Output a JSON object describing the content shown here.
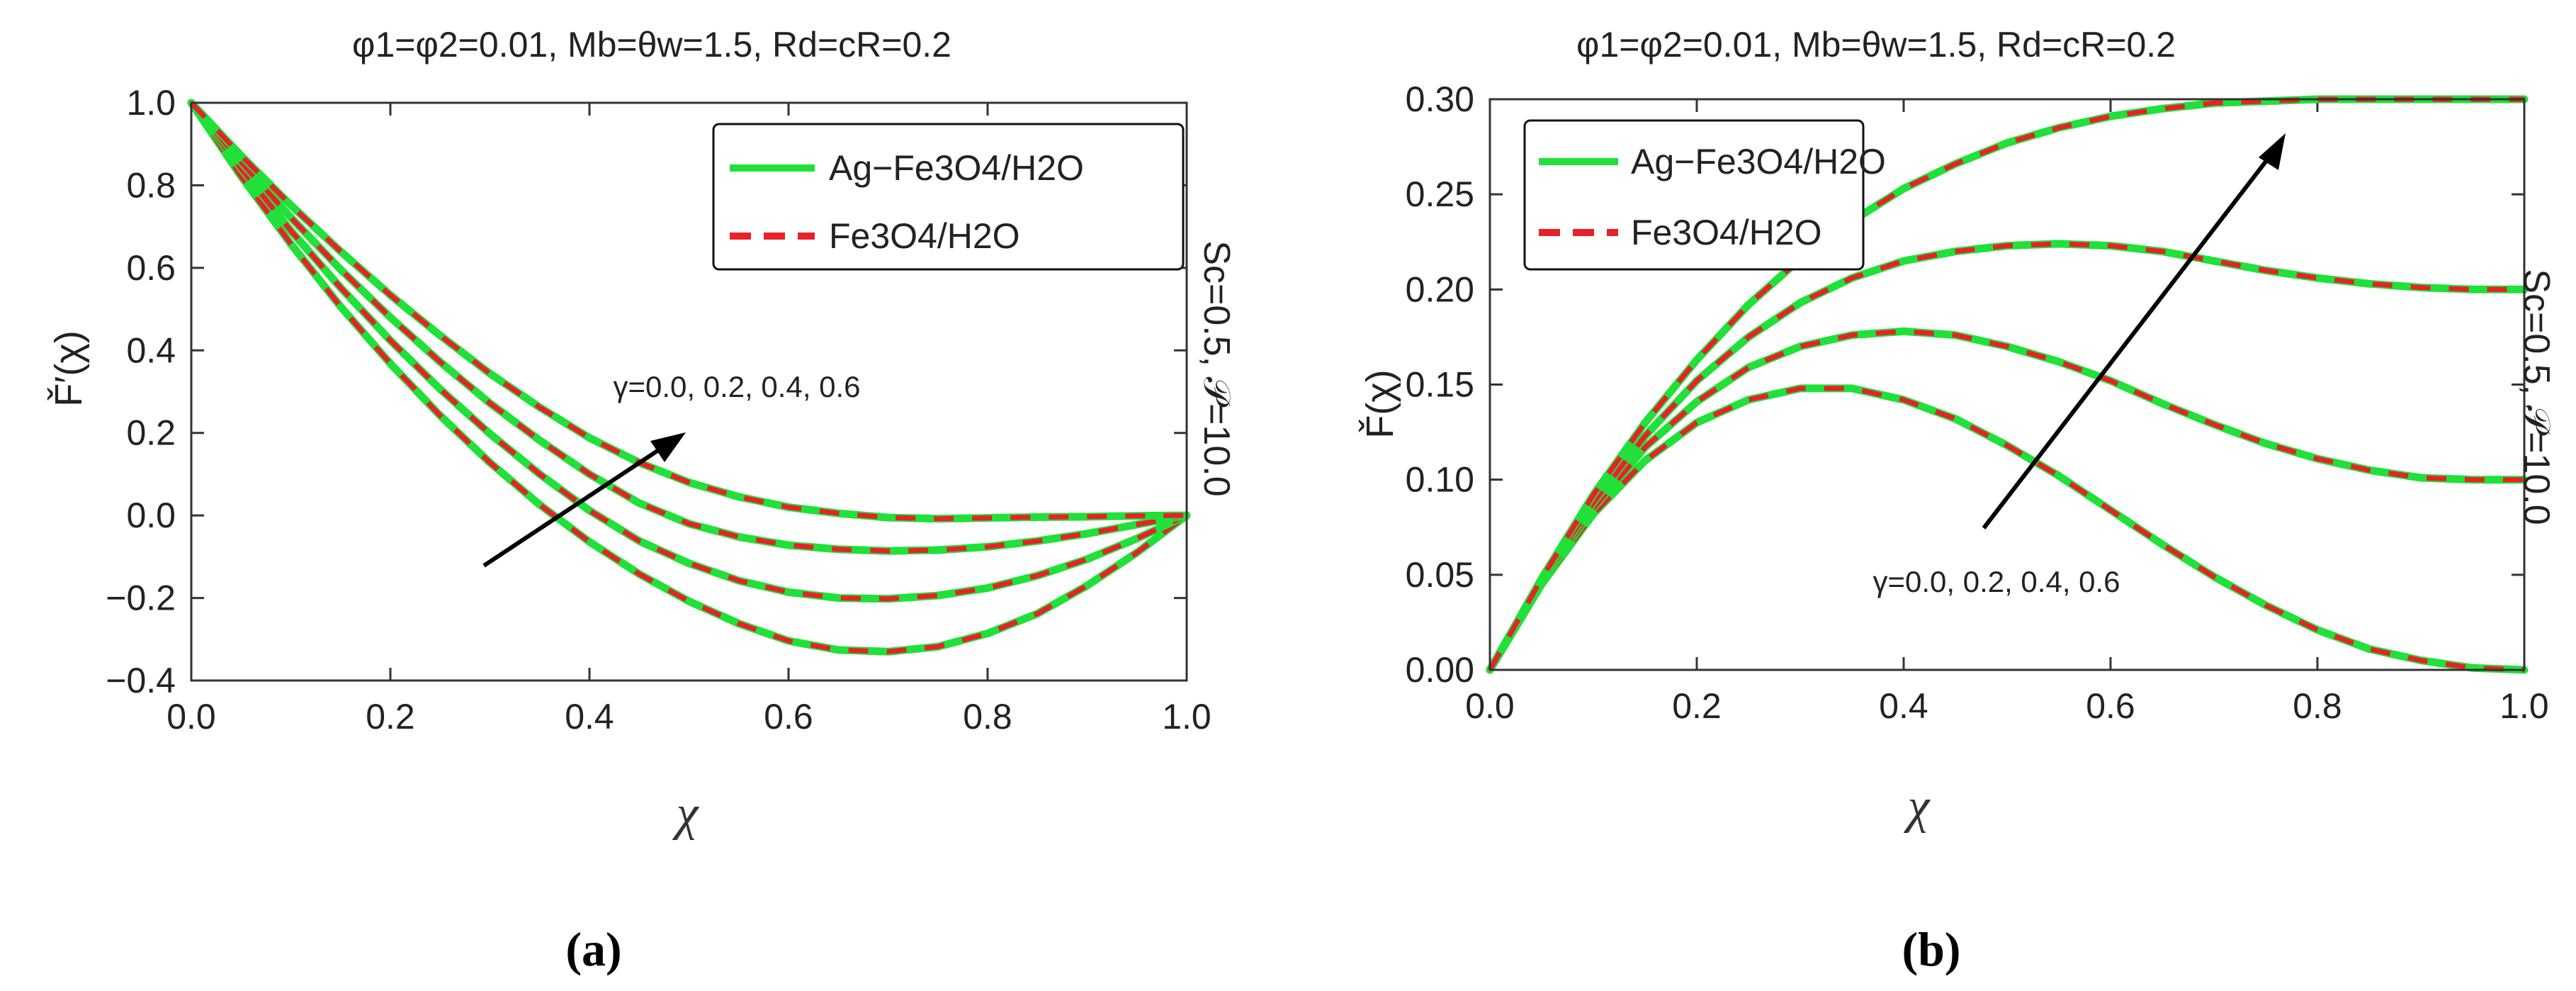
{
  "chart_data": [
    {
      "type": "line",
      "panel_label": "(a)",
      "title": "φ1=φ2=0.01, Mb=θw=1.5, Rd=cR=0.2",
      "xlabel": "χ",
      "ylabel": "F̌′(χ)",
      "side_label": "Sc=0.5, 𝒫=10.0",
      "xlim": [
        0.0,
        1.0
      ],
      "ylim": [
        -0.4,
        1.0
      ],
      "x_ticks": [
        "0.0",
        "0.2",
        "0.4",
        "0.6",
        "0.8",
        "1.0"
      ],
      "y_ticks": [
        "−0.4",
        "−0.2",
        "0.0",
        "0.2",
        "0.4",
        "0.6",
        "0.8",
        "1.0"
      ],
      "legend": [
        {
          "label": "Ag−Fe3O4/H2O",
          "color": "#22e03a",
          "style": "solid"
        },
        {
          "label": "Fe3O4/H2O",
          "color": "#e8202a",
          "style": "dashed"
        }
      ],
      "annotation": "γ=0.0, 0.2, 0.4, 0.6",
      "arrow_direction": "increasing γ (up-right)",
      "x": [
        0.0,
        0.05,
        0.1,
        0.15,
        0.2,
        0.25,
        0.3,
        0.35,
        0.4,
        0.45,
        0.5,
        0.55,
        0.6,
        0.65,
        0.7,
        0.75,
        0.8,
        0.85,
        0.9,
        0.95,
        1.0
      ],
      "series": [
        {
          "name": "γ=0.0",
          "values": [
            1.0,
            0.822,
            0.658,
            0.506,
            0.368,
            0.242,
            0.128,
            0.026,
            -0.064,
            -0.142,
            -0.208,
            -0.262,
            -0.304,
            -0.326,
            -0.33,
            -0.318,
            -0.286,
            -0.238,
            -0.17,
            -0.09,
            0.0
          ]
        },
        {
          "name": "γ=0.2",
          "values": [
            1.0,
            0.84,
            0.69,
            0.552,
            0.424,
            0.306,
            0.198,
            0.1,
            0.012,
            -0.062,
            -0.116,
            -0.158,
            -0.186,
            -0.2,
            -0.202,
            -0.194,
            -0.176,
            -0.146,
            -0.106,
            -0.056,
            0.0
          ]
        },
        {
          "name": "γ=0.4",
          "values": [
            1.0,
            0.856,
            0.722,
            0.596,
            0.48,
            0.372,
            0.272,
            0.182,
            0.1,
            0.03,
            -0.02,
            -0.052,
            -0.072,
            -0.082,
            -0.086,
            -0.084,
            -0.076,
            -0.062,
            -0.044,
            -0.022,
            0.0
          ]
        },
        {
          "name": "γ=0.6",
          "values": [
            1.0,
            0.872,
            0.752,
            0.64,
            0.534,
            0.436,
            0.344,
            0.262,
            0.188,
            0.128,
            0.08,
            0.045,
            0.02,
            0.005,
            -0.005,
            -0.008,
            -0.006,
            -0.004,
            -0.003,
            -0.001,
            0.0
          ]
        }
      ]
    },
    {
      "type": "line",
      "panel_label": "(b)",
      "title": "φ1=φ2=0.01, Mb=θw=1.5, Rd=cR=0.2",
      "xlabel": "χ",
      "ylabel": "F̌(χ)",
      "side_label": "Sc=0.5, 𝒫=10.0",
      "xlim": [
        0.0,
        1.0
      ],
      "ylim": [
        0.0,
        0.3
      ],
      "x_ticks": [
        "0.0",
        "0.2",
        "0.4",
        "0.6",
        "0.8",
        "1.0"
      ],
      "y_ticks": [
        "0.00",
        "0.05",
        "0.10",
        "0.15",
        "0.20",
        "0.25",
        "0.30"
      ],
      "legend": [
        {
          "label": "Ag−Fe3O4/H2O",
          "color": "#22e03a",
          "style": "solid"
        },
        {
          "label": "Fe3O4/H2O",
          "color": "#e8202a",
          "style": "dashed"
        }
      ],
      "annotation": "γ=0.0, 0.2, 0.4, 0.6",
      "arrow_direction": "increasing γ (up-right)",
      "x": [
        0.0,
        0.05,
        0.1,
        0.15,
        0.2,
        0.25,
        0.3,
        0.35,
        0.4,
        0.45,
        0.5,
        0.55,
        0.6,
        0.65,
        0.7,
        0.75,
        0.8,
        0.85,
        0.9,
        0.95,
        1.0
      ],
      "series": [
        {
          "name": "γ=0.0",
          "values": [
            0.0,
            0.045,
            0.082,
            0.11,
            0.13,
            0.142,
            0.148,
            0.148,
            0.142,
            0.132,
            0.118,
            0.102,
            0.084,
            0.066,
            0.049,
            0.034,
            0.021,
            0.011,
            0.005,
            0.001,
            0.0
          ]
        },
        {
          "name": "γ=0.2",
          "values": [
            0.0,
            0.046,
            0.085,
            0.117,
            0.141,
            0.159,
            0.17,
            0.176,
            0.178,
            0.176,
            0.17,
            0.162,
            0.152,
            0.14,
            0.129,
            0.119,
            0.111,
            0.105,
            0.101,
            0.1,
            0.1
          ]
        },
        {
          "name": "γ=0.4",
          "values": [
            0.0,
            0.047,
            0.088,
            0.123,
            0.152,
            0.175,
            0.193,
            0.206,
            0.215,
            0.22,
            0.223,
            0.224,
            0.223,
            0.22,
            0.215,
            0.21,
            0.206,
            0.203,
            0.201,
            0.2,
            0.2
          ]
        },
        {
          "name": "γ=0.6",
          "values": [
            0.0,
            0.048,
            0.092,
            0.13,
            0.163,
            0.192,
            0.216,
            0.236,
            0.253,
            0.266,
            0.277,
            0.285,
            0.291,
            0.295,
            0.298,
            0.299,
            0.3,
            0.3,
            0.3,
            0.3,
            0.3
          ]
        }
      ]
    }
  ]
}
